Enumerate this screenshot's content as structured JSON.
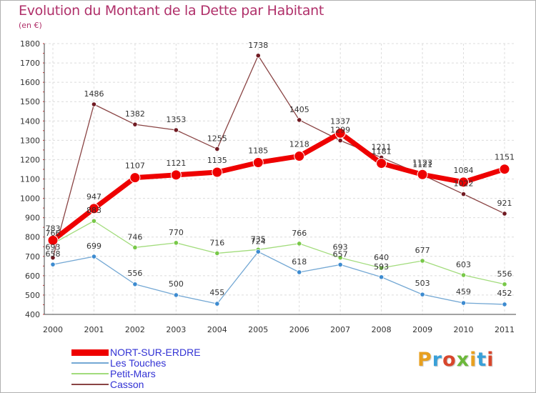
{
  "title": "Evolution du Montant de la Dette par Habitant",
  "subtitle": "(en €)",
  "brand": {
    "letters": [
      "P",
      "r",
      "o",
      "x",
      "i",
      "t",
      "i"
    ],
    "colors": [
      "#e8a020",
      "#3aa0d8",
      "#d8462c",
      "#6cb83a",
      "#e8a020",
      "#3aa0d8",
      "#d8462c"
    ]
  },
  "chart_data": {
    "type": "line",
    "title": "Evolution du Montant de la Dette par Habitant",
    "subtitle": "(en €)",
    "xlabel": "",
    "ylabel": "",
    "x": [
      "2000",
      "2001",
      "2002",
      "2003",
      "2004",
      "2005",
      "2006",
      "2007",
      "2008",
      "2009",
      "2010",
      "2011"
    ],
    "ylim": [
      400,
      1800
    ],
    "yticks": [
      400,
      500,
      600,
      700,
      800,
      900,
      1000,
      1100,
      1200,
      1300,
      1400,
      1500,
      1600,
      1700,
      1800
    ],
    "grid": true,
    "legend_position": "bottom-left",
    "series": [
      {
        "name": "NORT-SUR-ERDRE",
        "color": "#ee0000",
        "markerColor": "#ee0000",
        "emphasis": true,
        "values": [
          783,
          947,
          1107,
          1121,
          1135,
          1185,
          1218,
          1337,
          1181,
          1123,
          1084,
          1151
        ],
        "labels": [
          "783",
          "947",
          "1107",
          "1121",
          "1135",
          "1185",
          "1218",
          "1337",
          "1181",
          "1123",
          "1084",
          "1151"
        ]
      },
      {
        "name": "Les Touches",
        "color": "#74a8d4",
        "markerColor": "#3d8bd0",
        "values": [
          658,
          699,
          556,
          500,
          455,
          724,
          618,
          657,
          593,
          503,
          459,
          452
        ],
        "labels": [
          "658",
          "699",
          "556",
          "500",
          "455",
          "724",
          "618",
          "657",
          "593",
          "503",
          "459",
          "452"
        ]
      },
      {
        "name": "Petit-Mars",
        "color": "#a2dc7c",
        "markerColor": "#78c848",
        "values": [
          766,
          883,
          746,
          770,
          716,
          735,
          766,
          693,
          640,
          677,
          603,
          556
        ],
        "labels": [
          "766",
          "883",
          "746",
          "770",
          "716",
          "735",
          "766",
          "693",
          "640",
          "677",
          "603",
          "556"
        ]
      },
      {
        "name": "Casson",
        "color": "#8a4444",
        "markerColor": "#701a22",
        "values": [
          693,
          1486,
          1382,
          1353,
          1255,
          1738,
          1405,
          1299,
          1211,
          1121,
          1022,
          921
        ],
        "labels": [
          "693",
          "1486",
          "1382",
          "1353",
          "1255",
          "1738",
          "1405",
          "1299",
          "1211",
          "1121",
          "1022",
          "921"
        ]
      }
    ]
  }
}
